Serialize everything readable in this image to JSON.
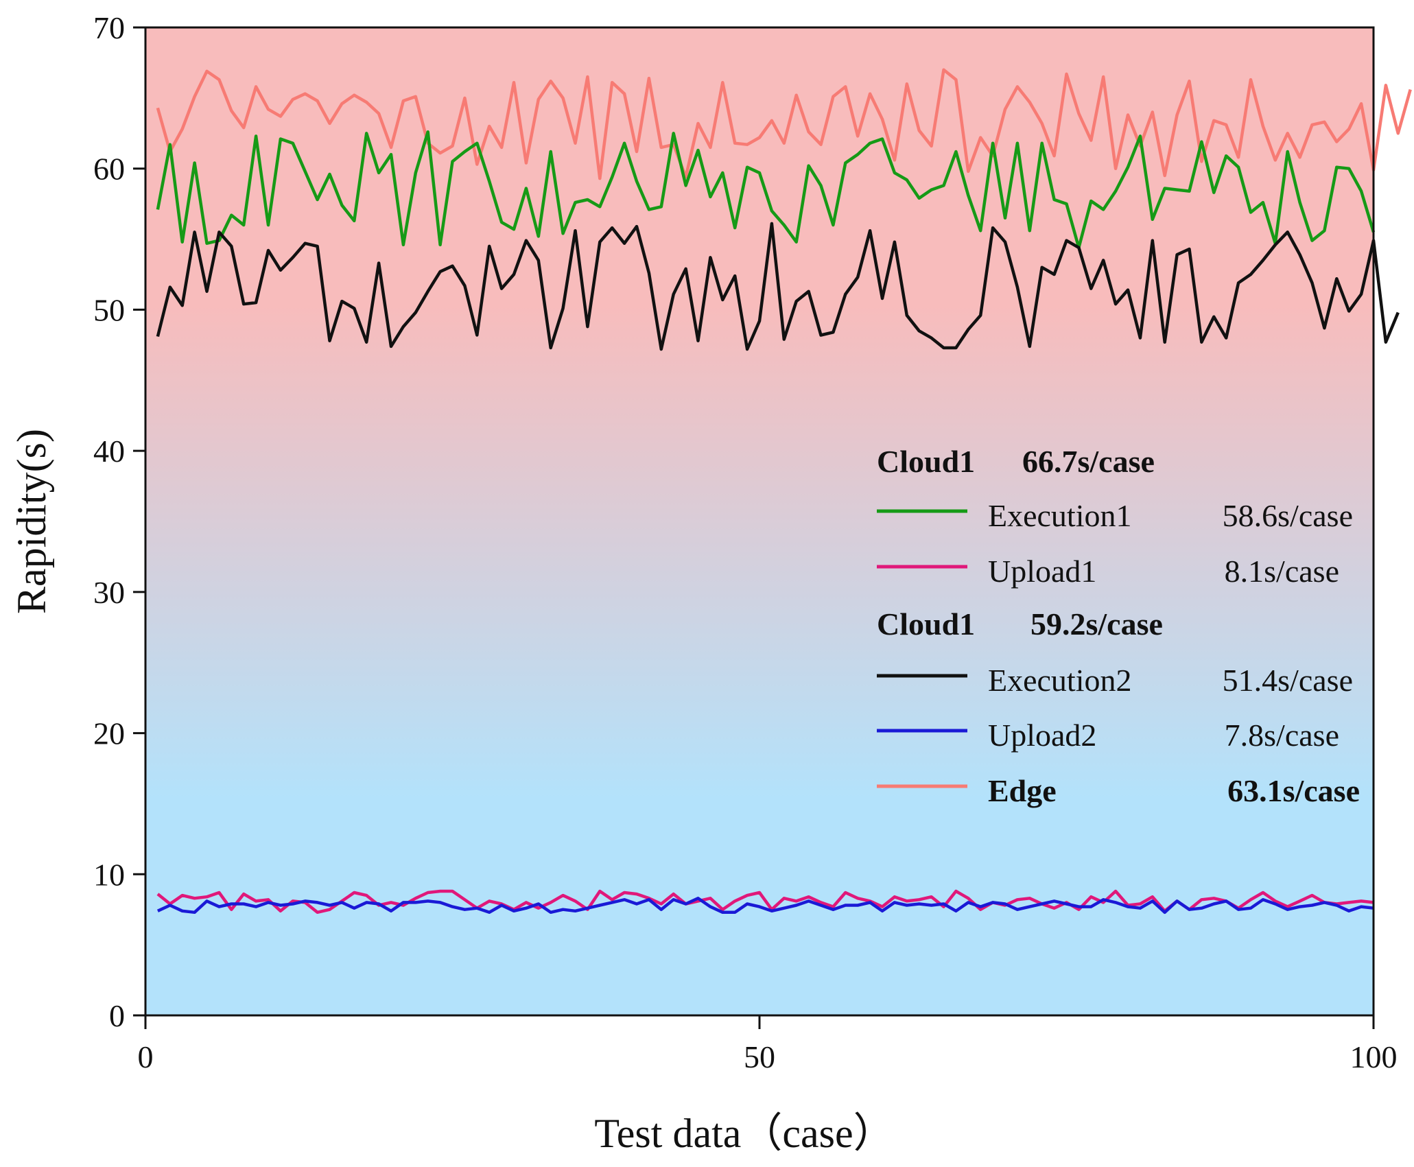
{
  "chart_data": {
    "type": "line",
    "title": "",
    "xlabel": "Test data（case）",
    "ylabel": "Rapidity(s)",
    "xlim": [
      0,
      100
    ],
    "ylim": [
      0,
      70
    ],
    "xticks": [
      0,
      50,
      100
    ],
    "yticks": [
      0,
      10,
      20,
      30,
      40,
      50,
      60,
      70
    ],
    "grid": false,
    "background": {
      "type": "vertical-gradient",
      "top_color": "#f8bcbc",
      "bottom_color": "#b3e2fb"
    },
    "legend_position": "center-right",
    "legend": {
      "groups": [
        {
          "header": {
            "name": "Cloud1",
            "value": "66.7s/case"
          },
          "items": [
            {
              "series": "Execution1",
              "label": "Execution1",
              "value": "58.6s/case"
            },
            {
              "series": "Upload1",
              "label": "Upload1",
              "value": "8.1s/case"
            }
          ]
        },
        {
          "header": {
            "name": "Cloud1",
            "value": "59.2s/case"
          },
          "items": [
            {
              "series": "Execution2",
              "label": "Execution2",
              "value": "51.4s/case"
            },
            {
              "series": "Upload2",
              "label": "Upload2",
              "value": "7.8s/case"
            },
            {
              "series": "Edge",
              "label": "Edge",
              "value": "63.1s/case",
              "bold": true
            }
          ]
        }
      ]
    },
    "x_start": 1,
    "x_step": 1,
    "series": [
      {
        "name": "Edge",
        "color": "#f77b74",
        "values": [
          64.3,
          61.2,
          62.8,
          65.1,
          66.9,
          66.3,
          64.1,
          62.9,
          65.8,
          64.2,
          63.7,
          64.9,
          65.3,
          64.8,
          63.2,
          64.6,
          65.2,
          64.7,
          63.9,
          61.5,
          64.8,
          65.1,
          61.8,
          61.1,
          61.6,
          65.0,
          60.3,
          63.0,
          61.5,
          66.1,
          60.4,
          64.9,
          66.2,
          65.0,
          61.8,
          66.5,
          59.3,
          66.1,
          65.3,
          61.2,
          66.4,
          61.5,
          61.7,
          59.4,
          63.2,
          61.5,
          66.1,
          61.8,
          61.7,
          62.2,
          63.4,
          61.8,
          65.2,
          62.6,
          61.7,
          65.1,
          65.8,
          62.3,
          65.3,
          63.5,
          60.6,
          66.0,
          62.7,
          61.6,
          67.0,
          66.3,
          59.8,
          62.2,
          60.9,
          64.2,
          65.8,
          64.7,
          63.2,
          60.9,
          66.7,
          63.9,
          62.0,
          66.5,
          60.0,
          63.8,
          61.6,
          64.0,
          59.5,
          63.8,
          66.2,
          60.5,
          63.4,
          63.1,
          60.8,
          66.3,
          63.0,
          60.6,
          62.5,
          60.8,
          63.1,
          63.3,
          61.9,
          62.8,
          64.6,
          59.9,
          65.9,
          62.5,
          65.6
        ]
      },
      {
        "name": "Execution1",
        "color": "#169a16",
        "values": [
          57.1,
          61.7,
          54.8,
          60.4,
          54.7,
          54.9,
          56.7,
          56.0,
          62.3,
          56.0,
          62.1,
          61.8,
          59.8,
          57.8,
          59.6,
          57.4,
          56.3,
          62.5,
          59.7,
          61.0,
          54.6,
          59.7,
          62.6,
          54.6,
          60.5,
          61.2,
          61.8,
          59.1,
          56.2,
          55.7,
          58.6,
          55.2,
          61.2,
          55.4,
          57.6,
          57.8,
          57.3,
          59.4,
          61.8,
          59.1,
          57.1,
          57.3,
          62.5,
          58.8,
          61.3,
          58.0,
          59.7,
          55.8,
          60.1,
          59.7,
          57.0,
          56.0,
          54.8,
          60.2,
          58.8,
          56.0,
          60.4,
          61.0,
          61.8,
          62.1,
          59.7,
          59.2,
          57.9,
          58.5,
          58.8,
          61.2,
          58.1,
          55.6,
          61.8,
          56.5,
          61.8,
          55.6,
          61.8,
          57.8,
          57.5,
          54.4,
          57.7,
          57.1,
          58.4,
          60.1,
          62.3,
          56.4,
          58.6,
          58.5,
          58.4,
          61.9,
          58.3,
          60.9,
          60.1,
          56.9,
          57.6,
          54.7,
          61.2,
          57.6,
          54.9,
          55.6,
          60.1,
          60.0,
          58.4,
          55.5
        ]
      },
      {
        "name": "Execution2",
        "color": "#111111",
        "values": [
          48.1,
          51.6,
          50.3,
          55.5,
          51.3,
          55.5,
          54.5,
          50.4,
          50.5,
          54.2,
          52.8,
          53.7,
          54.7,
          54.5,
          47.8,
          50.6,
          50.1,
          47.7,
          53.3,
          47.4,
          48.8,
          49.8,
          51.3,
          52.7,
          53.1,
          51.7,
          48.2,
          54.5,
          51.5,
          52.5,
          54.9,
          53.5,
          47.3,
          50.1,
          55.6,
          48.8,
          54.8,
          55.8,
          54.7,
          55.9,
          52.6,
          47.2,
          51.1,
          52.9,
          47.8,
          53.7,
          50.7,
          52.4,
          47.2,
          49.2,
          56.1,
          47.9,
          50.6,
          51.3,
          48.2,
          48.4,
          51.1,
          52.3,
          55.6,
          50.8,
          54.8,
          49.6,
          48.5,
          48.0,
          47.3,
          47.3,
          48.6,
          49.6,
          55.8,
          54.8,
          51.6,
          47.4,
          53.0,
          52.5,
          54.9,
          54.4,
          51.5,
          53.5,
          50.4,
          51.4,
          48.0,
          54.9,
          47.7,
          53.9,
          54.3,
          47.7,
          49.5,
          48.0,
          51.9,
          52.5,
          53.5,
          54.6,
          55.5,
          53.9,
          51.9,
          48.7,
          52.2,
          49.9,
          51.1,
          54.9,
          47.7,
          49.8
        ]
      },
      {
        "name": "Upload1",
        "color": "#e0187a",
        "values": [
          8.6,
          7.9,
          8.5,
          8.3,
          8.4,
          8.7,
          7.5,
          8.6,
          8.1,
          8.2,
          7.4,
          8.1,
          8.0,
          7.3,
          7.5,
          8.1,
          8.7,
          8.5,
          7.8,
          8.0,
          7.8,
          8.3,
          8.7,
          8.8,
          8.8,
          8.2,
          7.6,
          8.1,
          7.9,
          7.5,
          8.0,
          7.6,
          8.0,
          8.5,
          8.1,
          7.5,
          8.8,
          8.2,
          8.7,
          8.6,
          8.3,
          7.9,
          8.6,
          7.9,
          8.1,
          8.3,
          7.5,
          8.1,
          8.5,
          8.7,
          7.5,
          8.3,
          8.1,
          8.4,
          8.0,
          7.7,
          8.7,
          8.3,
          8.1,
          7.7,
          8.4,
          8.1,
          8.2,
          8.4,
          7.7,
          8.8,
          8.3,
          7.5,
          8.0,
          7.8,
          8.2,
          8.3,
          7.9,
          7.6,
          8.0,
          7.5,
          8.4,
          8.0,
          8.8,
          7.8,
          7.9,
          8.4,
          7.4,
          8.1,
          7.5,
          8.2,
          8.3,
          8.1,
          7.6,
          8.2,
          8.7,
          8.1,
          7.7,
          8.1,
          8.5,
          8.0,
          7.9,
          8.0,
          8.1,
          8.0
        ]
      },
      {
        "name": "Upload2",
        "color": "#1a1ad6",
        "values": [
          7.4,
          7.8,
          7.4,
          7.3,
          8.1,
          7.7,
          7.9,
          7.9,
          7.7,
          8.0,
          7.8,
          7.9,
          8.1,
          8.0,
          7.8,
          8.0,
          7.6,
          8.0,
          7.9,
          7.4,
          8.0,
          8.0,
          8.1,
          8.0,
          7.7,
          7.5,
          7.6,
          7.3,
          7.8,
          7.4,
          7.6,
          7.9,
          7.3,
          7.5,
          7.4,
          7.6,
          7.8,
          8.0,
          8.2,
          7.9,
          8.2,
          7.5,
          8.2,
          7.9,
          8.3,
          7.7,
          7.3,
          7.3,
          7.9,
          7.7,
          7.4,
          7.6,
          7.8,
          8.1,
          7.8,
          7.5,
          7.8,
          7.8,
          8.0,
          7.4,
          8.0,
          7.8,
          7.9,
          7.8,
          7.9,
          7.4,
          8.0,
          7.7,
          8.0,
          7.9,
          7.5,
          7.7,
          7.9,
          8.1,
          7.9,
          7.7,
          7.7,
          8.2,
          8.0,
          7.7,
          7.6,
          8.1,
          7.3,
          8.1,
          7.5,
          7.6,
          7.9,
          8.1,
          7.5,
          7.6,
          8.2,
          7.9,
          7.5,
          7.7,
          7.8,
          8.0,
          7.8,
          7.4,
          7.7,
          7.6
        ]
      }
    ]
  }
}
